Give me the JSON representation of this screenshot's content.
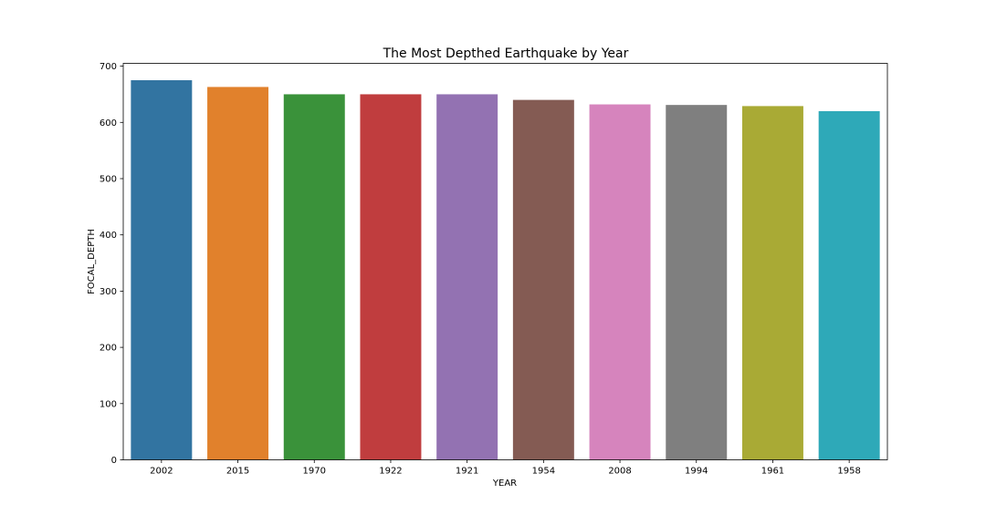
{
  "chart_data": {
    "type": "bar",
    "title": "The Most Depthed Earthquake by Year",
    "xlabel": "YEAR",
    "ylabel": "FOCAL_DEPTH",
    "categories": [
      "2002",
      "2015",
      "1970",
      "1922",
      "1921",
      "1954",
      "2008",
      "1994",
      "1961",
      "1958"
    ],
    "values": [
      675,
      663,
      650,
      650,
      650,
      640,
      632,
      631,
      629,
      620
    ],
    "colors": [
      "#3274a1",
      "#e1812c",
      "#3a923a",
      "#c03d3e",
      "#9372b2",
      "#845b53",
      "#d684bd",
      "#7f7f7f",
      "#a9aa35",
      "#2ea9b8"
    ],
    "ylim": [
      0,
      705
    ],
    "yticks": [
      0,
      100,
      200,
      300,
      400,
      500,
      600,
      700
    ],
    "grid": false,
    "legend": "none"
  }
}
